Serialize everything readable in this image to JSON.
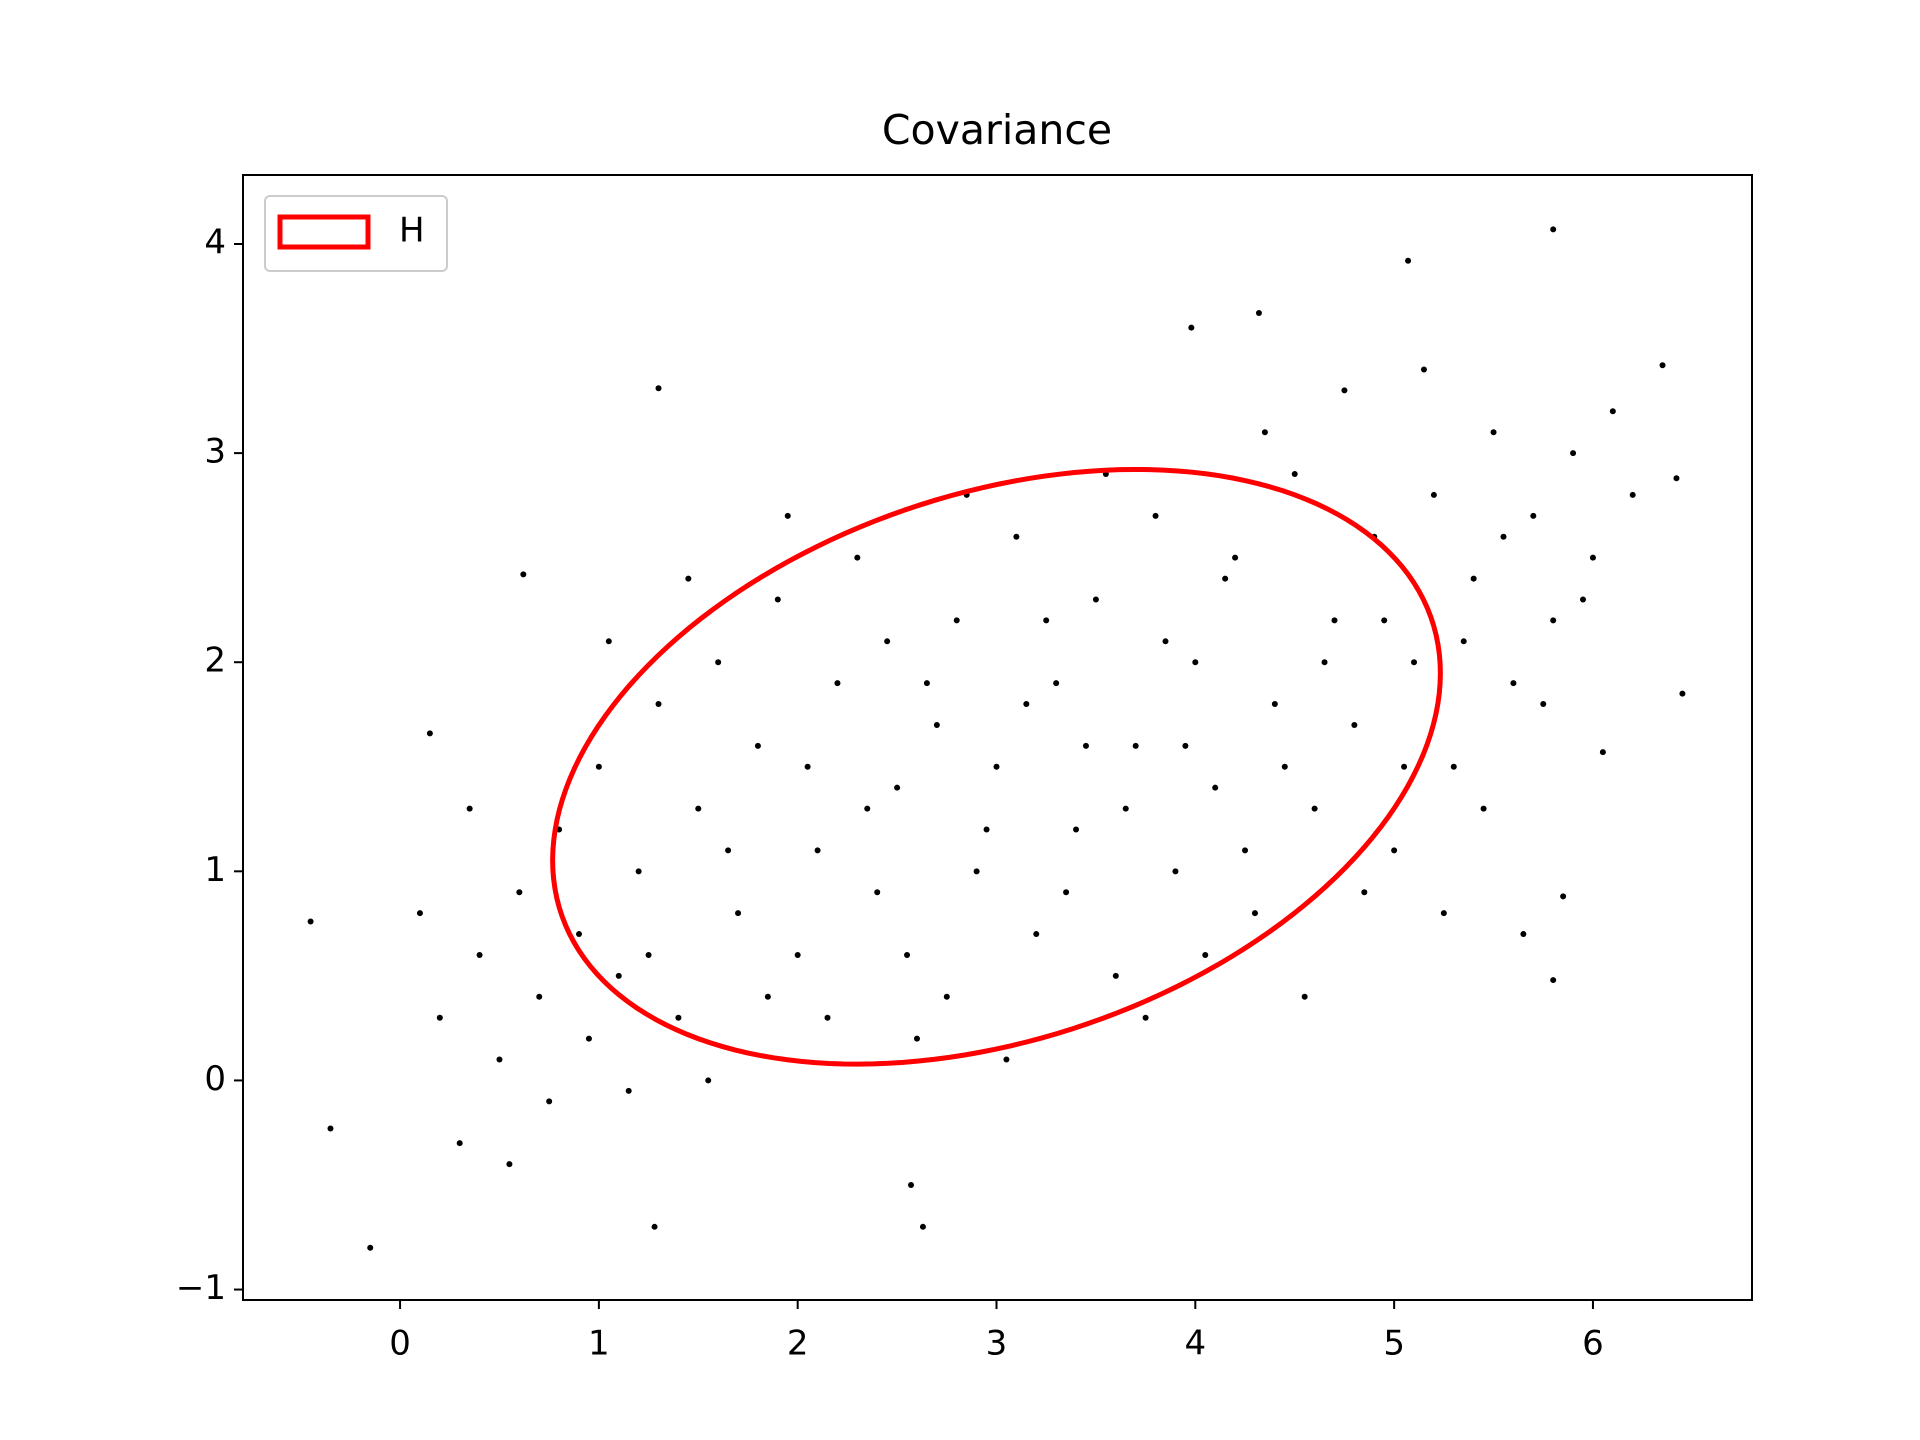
{
  "chart_data": {
    "type": "scatter",
    "title": "Covariance",
    "x": [
      0.2,
      0.4,
      0.5,
      0.3,
      0.6,
      0.7,
      0.8,
      0.9,
      1.0,
      1.1,
      1.2,
      1.3,
      1.4,
      1.5,
      1.6,
      1.7,
      1.8,
      1.9,
      2.0,
      2.1,
      2.2,
      2.3,
      2.4,
      2.5,
      2.6,
      2.7,
      2.8,
      2.9,
      3.0,
      3.1,
      3.2,
      3.3,
      3.4,
      3.5,
      3.6,
      3.7,
      3.8,
      3.9,
      4.0,
      4.1,
      4.2,
      4.3,
      4.4,
      4.5,
      4.6,
      4.7,
      4.8,
      4.9,
      5.0,
      5.1,
      5.2,
      5.3,
      5.4,
      5.5,
      5.6,
      5.7,
      5.8,
      5.9,
      6.0,
      6.2,
      0.1,
      0.35,
      0.55,
      0.75,
      0.95,
      1.05,
      1.15,
      1.25,
      1.45,
      1.55,
      1.65,
      1.85,
      1.95,
      2.05,
      2.15,
      2.35,
      2.45,
      2.55,
      2.65,
      2.75,
      2.85,
      2.95,
      3.05,
      3.15,
      3.25,
      3.35,
      3.45,
      3.55,
      3.65,
      3.75,
      3.85,
      3.95,
      4.05,
      4.15,
      4.25,
      4.35,
      4.45,
      4.55,
      4.65,
      4.75,
      4.85,
      4.95,
      5.05,
      5.15,
      5.25,
      5.35,
      5.45,
      5.55,
      5.65,
      5.75,
      5.95,
      6.1,
      -0.45,
      -0.35,
      -0.15,
      1.3,
      5.8,
      5.07,
      6.45,
      2.63,
      1.28,
      6.35,
      6.42,
      3.98,
      4.32,
      5.8,
      5.85,
      6.05,
      2.57,
      0.62,
      0.15
    ],
    "y": [
      0.3,
      0.6,
      0.1,
      -0.3,
      0.9,
      0.4,
      1.2,
      0.7,
      1.5,
      0.5,
      1.0,
      1.8,
      0.3,
      1.3,
      2.0,
      0.8,
      1.6,
      2.3,
      0.6,
      1.1,
      1.9,
      2.5,
      0.9,
      1.4,
      0.2,
      1.7,
      2.2,
      1.0,
      1.5,
      2.6,
      0.7,
      1.9,
      1.2,
      2.3,
      0.5,
      1.6,
      2.7,
      1.0,
      2.0,
      1.4,
      2.5,
      0.8,
      1.8,
      2.9,
      1.3,
      2.2,
      1.7,
      2.6,
      1.1,
      2.0,
      2.8,
      1.5,
      2.4,
      3.1,
      1.9,
      2.7,
      2.2,
      3.0,
      2.5,
      2.8,
      0.8,
      1.3,
      -0.4,
      -0.1,
      0.2,
      2.1,
      -0.05,
      0.6,
      2.4,
      0.0,
      1.1,
      0.4,
      2.7,
      1.5,
      0.3,
      1.3,
      2.1,
      0.6,
      1.9,
      0.4,
      2.8,
      1.2,
      0.1,
      1.8,
      2.2,
      0.9,
      1.6,
      2.9,
      1.3,
      0.3,
      2.1,
      1.6,
      0.6,
      2.4,
      1.1,
      3.1,
      1.5,
      0.4,
      2.0,
      3.3,
      0.9,
      2.2,
      1.5,
      3.4,
      0.8,
      2.1,
      1.3,
      2.6,
      0.7,
      1.8,
      2.3,
      3.2,
      0.76,
      -0.23,
      -0.8,
      3.31,
      4.07,
      3.92,
      1.85,
      -0.7,
      -0.7,
      3.42,
      2.88,
      3.6,
      3.67,
      0.48,
      0.88,
      1.57,
      -0.5,
      2.42,
      1.66
    ],
    "color": "#000000",
    "ellipse": {
      "name": "H",
      "color": "#ff0000",
      "center": [
        3.0,
        1.5
      ],
      "width": 4.6,
      "height": 2.62,
      "angle": 17
    },
    "xlim": [
      -0.79,
      6.8
    ],
    "ylim": [
      -1.05,
      4.33
    ],
    "xticks": [
      0,
      1,
      2,
      3,
      4,
      5,
      6
    ],
    "yticks": [
      {
        "value": -1,
        "label": "−1"
      },
      0,
      1,
      2,
      3,
      4
    ],
    "legend": "upper left"
  }
}
